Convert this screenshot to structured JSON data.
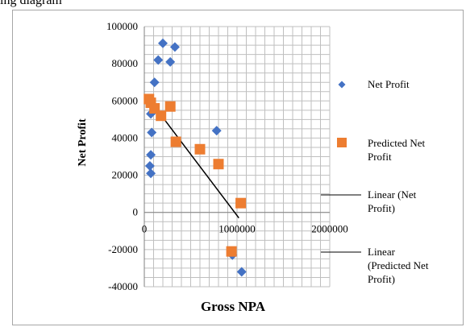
{
  "top_text": "ing diagram",
  "chart_data": {
    "type": "scatter",
    "title": "",
    "xlabel": "Gross NPA",
    "ylabel": "Net Profit",
    "xlim": [
      0,
      2000000
    ],
    "ylim": [
      -40000,
      100000
    ],
    "x_ticks": [
      0,
      1000000,
      2000000
    ],
    "x_tick_labels": [
      "0",
      "1000000",
      "2000000"
    ],
    "y_ticks": [
      -40000,
      -20000,
      0,
      20000,
      40000,
      60000,
      80000,
      100000
    ],
    "y_tick_labels": [
      "-40000",
      "-20000",
      "0",
      "20000",
      "40000",
      "60000",
      "80000",
      "100000"
    ],
    "grid": true,
    "legend_position": "right",
    "series": [
      {
        "name": "Net Profit",
        "marker": "diamond",
        "color": "#4472c4",
        "points": [
          [
            200000,
            91000
          ],
          [
            330000,
            89000
          ],
          [
            150000,
            82000
          ],
          [
            280000,
            81000
          ],
          [
            110000,
            70000
          ],
          [
            70000,
            53000
          ],
          [
            80000,
            43000
          ],
          [
            780000,
            44000
          ],
          [
            70000,
            31000
          ],
          [
            60000,
            25000
          ],
          [
            70000,
            21000
          ],
          [
            950000,
            -23000
          ],
          [
            1050000,
            -32000
          ]
        ]
      },
      {
        "name": "Predicted Net Profit",
        "marker": "square",
        "color": "#ed7d31",
        "points": [
          [
            50000,
            61000
          ],
          [
            70000,
            59000
          ],
          [
            110000,
            56000
          ],
          [
            180000,
            52000
          ],
          [
            280000,
            57000
          ],
          [
            340000,
            38000
          ],
          [
            600000,
            34000
          ],
          [
            800000,
            26000
          ],
          [
            1040000,
            5000
          ],
          [
            940000,
            -21000
          ]
        ]
      }
    ],
    "trendlines": [
      {
        "name": "Linear (Net Profit)",
        "color": "#000000",
        "from": [
          50000,
          61000
        ],
        "to": [
          1020000,
          -3000
        ]
      },
      {
        "name": "Linear (Predicted Net Profit)",
        "color": "#000000",
        "from": [
          50000,
          61000
        ],
        "to": [
          1020000,
          -3000
        ]
      }
    ]
  }
}
